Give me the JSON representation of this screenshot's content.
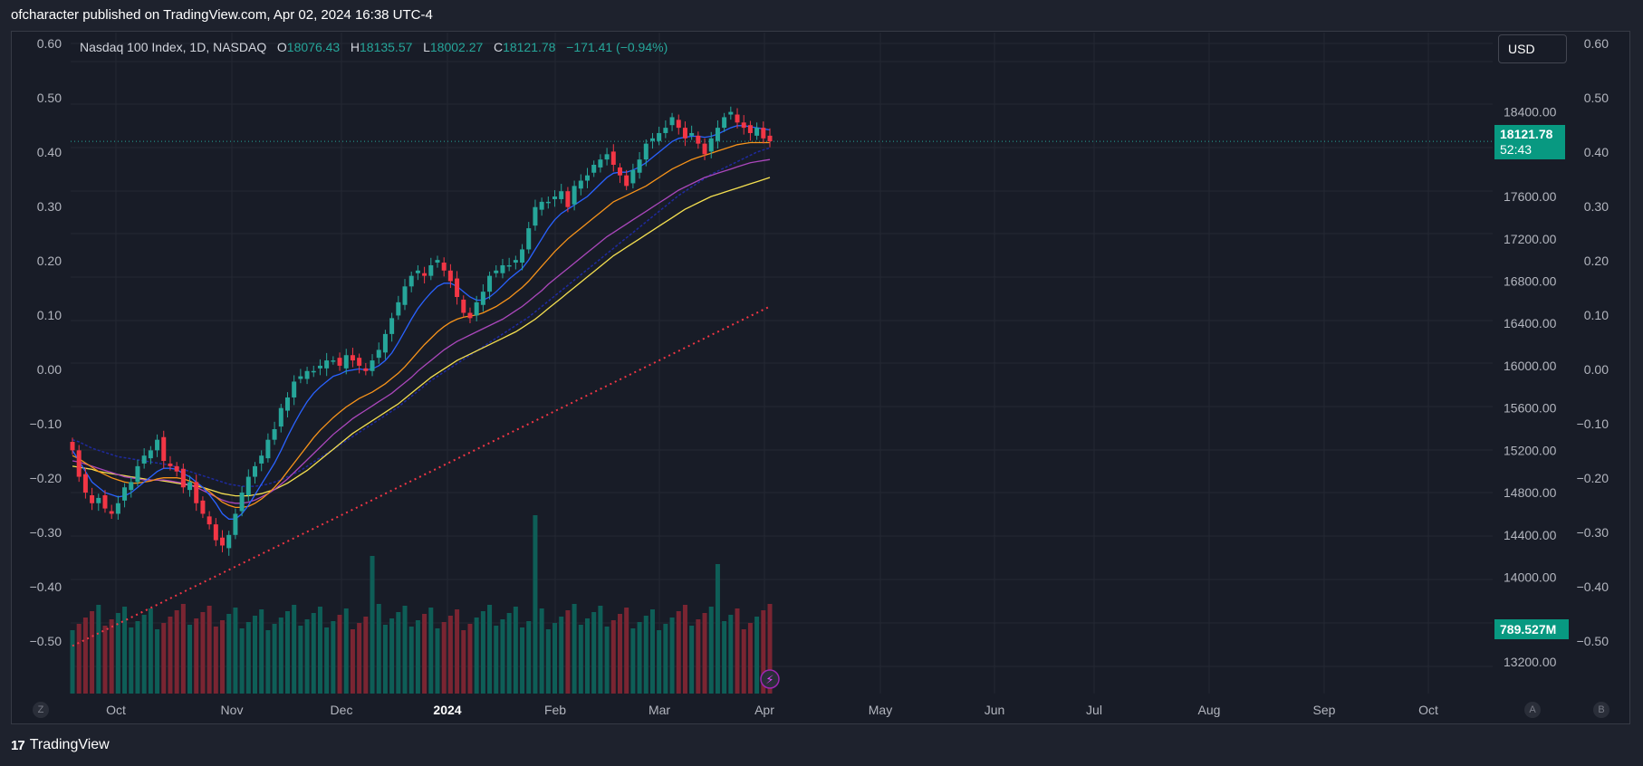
{
  "header": {
    "text": "ofcharacter published on TradingView.com, Apr 02, 2024 16:38 UTC-4"
  },
  "footer": {
    "brand": "TradingView"
  },
  "legend": {
    "symbol": "Nasdaq 100 Index, 1D, NASDAQ",
    "o_label": "O",
    "o_value": "18076.43",
    "h_label": "H",
    "h_value": "18135.57",
    "l_label": "L",
    "l_value": "18002.27",
    "c_label": "C",
    "c_value": "18121.78",
    "change": "−171.41 (−0.94%)"
  },
  "currency": "USD",
  "last_price_tag": {
    "price": "18121.78",
    "countdown": "52:43"
  },
  "volume_tag": "789.527M",
  "bottom_buttons": {
    "left": "Z",
    "right_a": "A",
    "right_b": "B"
  },
  "colors": {
    "up": "#26a69a",
    "down": "#f23645",
    "vol_up": "#0e5e57",
    "vol_down": "#7a2532",
    "ma_blue": "#2962ff",
    "ma_orange": "#f7931a",
    "ma_purple": "#ab47bc",
    "ma_yellow": "#f5e050",
    "ma_navy": "#1e2a9e",
    "ma_red_dotted": "#f23645"
  },
  "chart_data": {
    "type": "candlestick",
    "x_ticks": [
      "Oct",
      "Nov",
      "Dec",
      "2024",
      "Feb",
      "Mar",
      "Apr",
      "May",
      "Jun",
      "Jul",
      "Aug",
      "Sep",
      "Oct"
    ],
    "y_right_ticks": [
      13200,
      14000,
      14400,
      14800,
      15200,
      15600,
      16000,
      16400,
      16800,
      17200,
      17600,
      18400
    ],
    "y_left_ticks": [
      "0.60",
      "0.50",
      "0.40",
      "0.30",
      "0.20",
      "0.10",
      "0.00",
      "−0.10",
      "−0.20",
      "−0.30",
      "−0.40",
      "−0.50"
    ],
    "y_far_right_ticks": [
      "0.60",
      "0.50",
      "0.40",
      "0.30",
      "0.20",
      "0.10",
      "0.00",
      "−0.10",
      "−0.20",
      "−0.30",
      "−0.40",
      "−0.50"
    ],
    "ylim": [
      12900,
      19150
    ],
    "last_close": 18121.78,
    "closes": [
      15200,
      14950,
      14800,
      14700,
      14750,
      14650,
      14600,
      14700,
      14850,
      14900,
      15050,
      15150,
      15200,
      15300,
      15100,
      15050,
      15000,
      14850,
      14900,
      14700,
      14600,
      14500,
      14350,
      14300,
      14400,
      14600,
      14800,
      14950,
      15050,
      15150,
      15300,
      15400,
      15600,
      15700,
      15850,
      15900,
      15950,
      15950,
      16000,
      16050,
      16050,
      16000,
      16100,
      16050,
      16000,
      15950,
      16050,
      16150,
      16300,
      16450,
      16600,
      16750,
      16850,
      16900,
      16850,
      16950,
      17000,
      16900,
      16800,
      16650,
      16500,
      16450,
      16600,
      16700,
      16850,
      16900,
      16950,
      16950,
      17000,
      17100,
      17300,
      17500,
      17550,
      17550,
      17600,
      17650,
      17500,
      17700,
      17750,
      17800,
      17900,
      17950,
      18000,
      17900,
      17800,
      17700,
      17850,
      17950,
      18100,
      18150,
      18200,
      18250,
      18350,
      18250,
      18150,
      18200,
      18100,
      18000,
      18150,
      18250,
      18350,
      18400,
      18300,
      18250,
      18200,
      18250,
      18150,
      18121.78
    ],
    "ma_blue": [
      15200,
      15100,
      15000,
      14900,
      14850,
      14800,
      14780,
      14760,
      14770,
      14800,
      14850,
      14900,
      14950,
      15000,
      15030,
      15030,
      15020,
      14980,
      14950,
      14900,
      14850,
      14780,
      14700,
      14600,
      14550,
      14550,
      14600,
      14680,
      14780,
      14880,
      14980,
      15080,
      15200,
      15330,
      15450,
      15560,
      15660,
      15740,
      15800,
      15850,
      15900,
      15920,
      15950,
      15960,
      15970,
      15960,
      15970,
      16000,
      16050,
      16120,
      16220,
      16330,
      16440,
      16540,
      16620,
      16690,
      16750,
      16780,
      16780,
      16750,
      16700,
      16650,
      16620,
      16620,
      16650,
      16700,
      16760,
      16820,
      16870,
      16920,
      17000,
      17100,
      17200,
      17300,
      17380,
      17440,
      17480,
      17520,
      17560,
      17600,
      17660,
      17720,
      17780,
      17820,
      17830,
      17830,
      17850,
      17880,
      17920,
      17970,
      18020,
      18070,
      18120,
      18150,
      18160,
      18170,
      18170,
      18160,
      18170,
      18190,
      18220,
      18250,
      18270,
      18270,
      18260,
      18250,
      18240,
      18230
    ],
    "ma_orange": [
      15150,
      15120,
      15080,
      15040,
      15000,
      14970,
      14940,
      14920,
      14900,
      14890,
      14890,
      14900,
      14910,
      14930,
      14940,
      14940,
      14940,
      14930,
      14910,
      14880,
      14850,
      14810,
      14760,
      14710,
      14680,
      14660,
      14660,
      14670,
      14700,
      14740,
      14790,
      14850,
      14920,
      15000,
      15080,
      15160,
      15240,
      15320,
      15390,
      15450,
      15510,
      15560,
      15610,
      15650,
      15690,
      15720,
      15750,
      15790,
      15830,
      15880,
      15930,
      15990,
      16060,
      16130,
      16200,
      16260,
      16320,
      16370,
      16410,
      16440,
      16460,
      16470,
      16480,
      16500,
      16530,
      16560,
      16600,
      16640,
      16690,
      16740,
      16800,
      16870,
      16940,
      17010,
      17080,
      17140,
      17200,
      17250,
      17300,
      17350,
      17400,
      17450,
      17500,
      17550,
      17580,
      17610,
      17640,
      17670,
      17700,
      17740,
      17780,
      17820,
      17860,
      17890,
      17920,
      17950,
      17970,
      17990,
      18010,
      18030,
      18050,
      18070,
      18090,
      18100,
      18110,
      18110,
      18110,
      18110
    ],
    "ma_purple": [
      15100,
      15090,
      15070,
      15050,
      15030,
      15010,
      14990,
      14970,
      14950,
      14940,
      14930,
      14920,
      14920,
      14920,
      14920,
      14910,
      14900,
      14890,
      14870,
      14850,
      14820,
      14790,
      14760,
      14730,
      14710,
      14700,
      14700,
      14710,
      14730,
      14760,
      14790,
      14830,
      14880,
      14930,
      14990,
      15050,
      15110,
      15170,
      15230,
      15290,
      15350,
      15400,
      15450,
      15500,
      15540,
      15580,
      15620,
      15660,
      15700,
      15740,
      15790,
      15840,
      15890,
      15950,
      16000,
      16050,
      16100,
      16150,
      16190,
      16230,
      16260,
      16290,
      16320,
      16350,
      16380,
      16410,
      16440,
      16480,
      16520,
      16560,
      16610,
      16660,
      16710,
      16770,
      16820,
      16870,
      16920,
      16970,
      17020,
      17070,
      17120,
      17170,
      17220,
      17260,
      17300,
      17340,
      17380,
      17420,
      17460,
      17500,
      17540,
      17580,
      17620,
      17660,
      17690,
      17720,
      17750,
      17780,
      17800,
      17820,
      17840,
      17860,
      17880,
      17900,
      17920,
      17930,
      17940,
      17950
    ],
    "ma_yellow": [
      15050,
      15040,
      15030,
      15020,
      15000,
      14990,
      14980,
      14970,
      14960,
      14950,
      14940,
      14930,
      14920,
      14920,
      14910,
      14900,
      14890,
      14880,
      14870,
      14860,
      14850,
      14830,
      14810,
      14790,
      14780,
      14770,
      14770,
      14770,
      14780,
      14790,
      14810,
      14830,
      14860,
      14890,
      14930,
      14970,
      15010,
      15060,
      15110,
      15160,
      15210,
      15260,
      15310,
      15360,
      15400,
      15440,
      15480,
      15520,
      15560,
      15600,
      15640,
      15690,
      15740,
      15790,
      15840,
      15890,
      15930,
      15970,
      16010,
      16050,
      16080,
      16110,
      16140,
      16170,
      16200,
      16230,
      16260,
      16290,
      16320,
      16360,
      16400,
      16440,
      16490,
      16540,
      16590,
      16640,
      16690,
      16740,
      16790,
      16840,
      16890,
      16940,
      16990,
      17040,
      17080,
      17120,
      17160,
      17200,
      17240,
      17280,
      17320,
      17360,
      17400,
      17440,
      17480,
      17510,
      17540,
      17570,
      17600,
      17620,
      17640,
      17660,
      17680,
      17700,
      17720,
      17740,
      17760,
      17780
    ],
    "ma_navy": [
      15300,
      15280,
      15250,
      15220,
      15200,
      15180,
      15160,
      15140,
      15130,
      15120,
      15110,
      15100,
      15090,
      15080,
      15070,
      15060,
      15040,
      15020,
      15000,
      14980,
      14960,
      14940,
      14920,
      14900,
      14880,
      14870,
      14860,
      14860,
      14860,
      14870,
      14880,
      14900,
      14920,
      14950,
      14980,
      15010,
      15050,
      15090,
      15130,
      15170,
      15210,
      15250,
      15290,
      15330,
      15370,
      15410,
      15450,
      15490,
      15530,
      15570,
      15610,
      15660,
      15710,
      15760,
      15810,
      15860,
      15900,
      15940,
      15980,
      16020,
      16060,
      16100,
      16140,
      16180,
      16220,
      16260,
      16300,
      16340,
      16380,
      16420,
      16460,
      16510,
      16560,
      16610,
      16660,
      16710,
      16760,
      16810,
      16860,
      16910,
      16960,
      17010,
      17060,
      17110,
      17160,
      17210,
      17260,
      17310,
      17360,
      17410,
      17460,
      17510,
      17560,
      17610,
      17650,
      17690,
      17730,
      17770,
      17810,
      17840,
      17870,
      17900,
      17930,
      17960,
      17990,
      18020,
      18040,
      18060
    ],
    "ma_red_dotted": [
      13350,
      13380,
      13410,
      13440,
      13470,
      13500,
      13530,
      13560,
      13590,
      13620,
      13650,
      13680,
      13710,
      13740,
      13770,
      13800,
      13830,
      13860,
      13890,
      13920,
      13950,
      13980,
      14010,
      14040,
      14070,
      14100,
      14130,
      14160,
      14190,
      14220,
      14250,
      14280,
      14310,
      14340,
      14370,
      14400,
      14430,
      14460,
      14490,
      14520,
      14550,
      14580,
      14610,
      14640,
      14670,
      14700,
      14730,
      14760,
      14790,
      14820,
      14850,
      14880,
      14910,
      14940,
      14970,
      15000,
      15030,
      15060,
      15090,
      15120,
      15150,
      15180,
      15210,
      15240,
      15270,
      15300,
      15330,
      15360,
      15390,
      15420,
      15450,
      15480,
      15510,
      15540,
      15570,
      15600,
      15630,
      15660,
      15690,
      15720,
      15750,
      15780,
      15810,
      15840,
      15870,
      15900,
      15930,
      15960,
      15990,
      16020,
      16050,
      16080,
      16110,
      16140,
      16170,
      16200,
      16230,
      16260,
      16290,
      16320,
      16350,
      16380,
      16410,
      16440,
      16470,
      16500,
      16530,
      16560
    ],
    "volume_up_last": true
  }
}
